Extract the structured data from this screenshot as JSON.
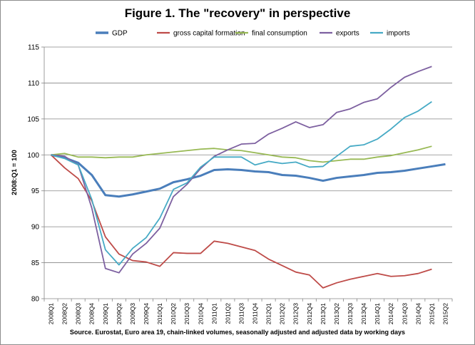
{
  "chart_data": {
    "type": "line",
    "title": "Figure 1. The \"recovery\" in perspective",
    "ylabel": "2008:Q1 = 100",
    "source": "Source. Eurostat, Euro area 19, chain-linked volumes, seasonally adjusted and adjusted data by working days",
    "ylim": [
      80,
      115
    ],
    "yticks": [
      80,
      85,
      90,
      95,
      100,
      105,
      110,
      115
    ],
    "grid": "horizontal",
    "legend_position": "top",
    "x": [
      "2008Q1",
      "2008Q2",
      "2008Q3",
      "2008Q4",
      "2009Q1",
      "2009Q2",
      "2009Q3",
      "2009Q4",
      "2010Q1",
      "2010Q2",
      "2010Q3",
      "2010Q4",
      "2011Q1",
      "2011Q2",
      "2011Q3",
      "2011Q4",
      "2012Q1",
      "2012Q2",
      "2012Q3",
      "2012Q4",
      "2013Q1",
      "2013Q2",
      "2013Q3",
      "2013Q4",
      "2014Q1",
      "2014Q2",
      "2014Q3",
      "2014Q4",
      "2015Q1",
      "2015Q2"
    ],
    "series": [
      {
        "name": "GDP",
        "color": "#4a7ebb",
        "width": 3,
        "values": [
          100,
          99.6,
          98.9,
          97.2,
          94.4,
          94.2,
          94.5,
          94.9,
          95.3,
          96.2,
          96.6,
          97.1,
          97.9,
          98.0,
          97.9,
          97.7,
          97.6,
          97.2,
          97.1,
          96.8,
          96.4,
          96.8,
          97.0,
          97.2,
          97.5,
          97.6,
          97.8,
          98.1,
          98.4,
          98.7
        ]
      },
      {
        "name": "gross capital formation",
        "color": "#be4b48",
        "width": 1.8,
        "values": [
          100,
          98.2,
          96.7,
          93.6,
          88.6,
          86.2,
          85.3,
          85.1,
          84.5,
          86.4,
          86.3,
          86.3,
          88.0,
          87.7,
          87.2,
          86.7,
          85.5,
          84.6,
          83.7,
          83.3,
          81.5,
          82.2,
          82.7,
          83.1,
          83.5,
          83.1,
          83.2,
          83.5,
          84.1,
          null
        ]
      },
      {
        "name": "final consumption",
        "color": "#98b954",
        "width": 1.8,
        "values": [
          100,
          100.2,
          99.7,
          99.7,
          99.6,
          99.7,
          99.7,
          100.0,
          100.2,
          100.4,
          100.6,
          100.8,
          100.9,
          100.7,
          100.6,
          100.3,
          100.0,
          99.7,
          99.6,
          99.2,
          99.0,
          99.2,
          99.4,
          99.4,
          99.7,
          99.9,
          100.3,
          100.7,
          101.2,
          null
        ]
      },
      {
        "name": "exports",
        "color": "#7d60a0",
        "width": 1.8,
        "values": [
          100,
          99.8,
          98.6,
          92.6,
          84.2,
          83.6,
          86.2,
          87.7,
          89.8,
          94.2,
          95.9,
          98.1,
          99.8,
          100.7,
          101.5,
          101.6,
          102.9,
          103.7,
          104.6,
          103.8,
          104.2,
          105.9,
          106.4,
          107.3,
          107.8,
          109.4,
          110.8,
          111.6,
          112.3,
          null
        ]
      },
      {
        "name": "imports",
        "color": "#46aac5",
        "width": 1.8,
        "values": [
          100,
          99.5,
          98.6,
          93.8,
          86.8,
          84.7,
          87.0,
          88.5,
          91.2,
          95.2,
          96.1,
          98.3,
          99.7,
          99.7,
          99.7,
          98.6,
          99.1,
          98.8,
          99.0,
          98.3,
          98.4,
          99.8,
          101.2,
          101.4,
          102.2,
          103.6,
          105.2,
          106.1,
          107.4,
          null
        ]
      }
    ]
  }
}
